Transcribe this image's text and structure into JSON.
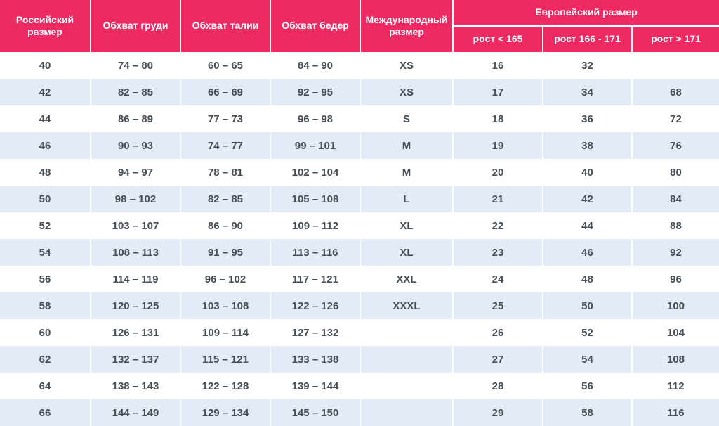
{
  "colors": {
    "header_bg": "#EE2A62",
    "header_text": "#FFFFFF",
    "stripe_bg": "#E2EBF6",
    "row_bg": "#FFFFFF",
    "cell_text": "#474E55",
    "separator": "#FFFFFF"
  },
  "table": {
    "header": {
      "russian": "Российский размер",
      "chest": "Обхват груди",
      "waist": "Обхват талии",
      "hips": "Обхват бедер",
      "international": "Международный размер",
      "european_group": "Европейский размер",
      "height_lt": "рост < 165",
      "height_mid": "рост 166 - 171",
      "height_gt": "рост > 171"
    },
    "rows": [
      [
        "40",
        "74 – 80",
        "60 – 65",
        "84 – 90",
        "XS",
        "16",
        "32",
        ""
      ],
      [
        "42",
        "82 – 85",
        "66 – 69",
        "92 – 95",
        "XS",
        "17",
        "34",
        "68"
      ],
      [
        "44",
        "86 – 89",
        "77 – 73",
        "96 – 98",
        "S",
        "18",
        "36",
        "72"
      ],
      [
        "46",
        "90 – 93",
        "74 – 77",
        "99 – 101",
        "M",
        "19",
        "38",
        "76"
      ],
      [
        "48",
        "94 – 97",
        "78 – 81",
        "102 – 104",
        "M",
        "20",
        "40",
        "80"
      ],
      [
        "50",
        "98 – 102",
        "82 – 85",
        "105 – 108",
        "L",
        "21",
        "42",
        "84"
      ],
      [
        "52",
        "103 – 107",
        "86 – 90",
        "109 – 112",
        "XL",
        "22",
        "44",
        "88"
      ],
      [
        "54",
        "108 – 113",
        "91 – 95",
        "113 – 116",
        "XL",
        "23",
        "46",
        "92"
      ],
      [
        "56",
        "114 – 119",
        "96 – 102",
        "117 – 121",
        "XXL",
        "24",
        "48",
        "96"
      ],
      [
        "58",
        "120 – 125",
        "103 – 108",
        "122 – 126",
        "XXXL",
        "25",
        "50",
        "100"
      ],
      [
        "60",
        "126 – 131",
        "109 – 114",
        "127 – 132",
        "",
        "26",
        "52",
        "104"
      ],
      [
        "62",
        "132 – 137",
        "115 – 121",
        "133 – 138",
        "",
        "27",
        "54",
        "108"
      ],
      [
        "64",
        "138 – 143",
        "122 – 128",
        "139 – 144",
        "",
        "28",
        "56",
        "112"
      ],
      [
        "66",
        "144 – 149",
        "129 – 134",
        "145 – 150",
        "",
        "29",
        "58",
        "116"
      ]
    ]
  }
}
